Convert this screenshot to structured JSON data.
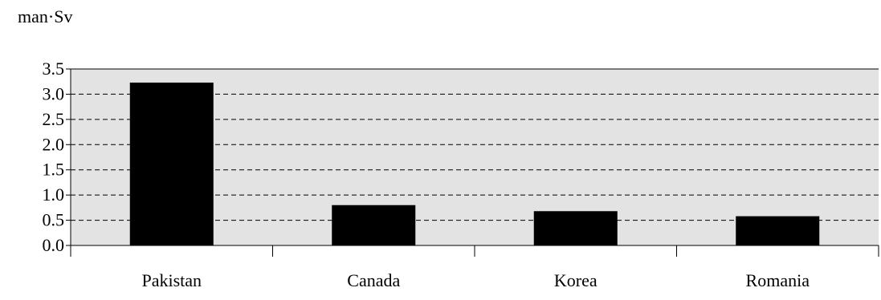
{
  "chart_data": {
    "type": "bar",
    "ylabel": "man·Sv",
    "categories": [
      "Pakistan",
      "Canada",
      "Korea",
      "Romania"
    ],
    "values": [
      3.23,
      0.8,
      0.68,
      0.58
    ],
    "ylim": [
      0,
      3.5
    ],
    "yticks": [
      "0.0",
      "0.5",
      "1.0",
      "1.5",
      "2.0",
      "2.5",
      "3.0",
      "3.5"
    ],
    "grid": true,
    "legend": "none",
    "colors": {
      "bar": "#000000",
      "plot_background": "#e3e3e3",
      "grid": "#000000"
    }
  }
}
